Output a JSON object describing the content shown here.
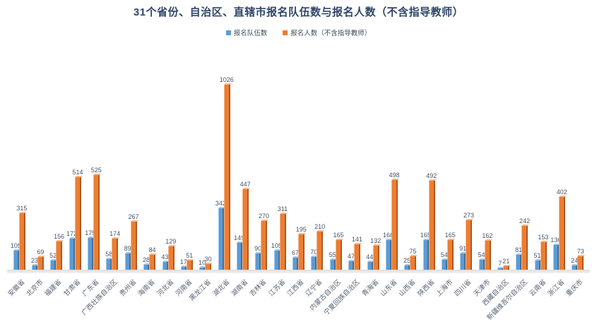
{
  "title": "31个省份、自治区、直辖市报名队伍数与报名人数（不含指导教师）",
  "colors": {
    "title_text": "#2f4668",
    "data_label_text": "#44546a",
    "axis_label_text": "#596473",
    "floor": "#dcdcdc",
    "background": "#ffffff"
  },
  "chart_data": {
    "type": "bar",
    "title": "31个省份、自治区、直辖市报名队伍数与报名人数（不含指导教师）",
    "xlabel": "",
    "ylabel": "",
    "ylim": [
      0,
      1100
    ],
    "grid": false,
    "legend_position": "top",
    "data_labels": true,
    "categories": [
      "安徽省",
      "北京市",
      "福建省",
      "甘肃省",
      "广东省",
      "广西壮族自治区",
      "贵州省",
      "海南省",
      "河北省",
      "河南省",
      "黑龙江省",
      "湖北省",
      "湖南省",
      "吉林省",
      "江苏省",
      "江西省",
      "辽宁省",
      "内蒙古自治区",
      "宁夏回族自治区",
      "青海省",
      "山东省",
      "山西省",
      "陕西省",
      "上海市",
      "四川省",
      "天津市",
      "西藏自治区",
      "新疆维吾尔自治区",
      "云南省",
      "浙江省",
      "重庆市"
    ],
    "series": [
      {
        "name": "报名队伍数",
        "color": "#5b9bd5",
        "color_dark": "#41719c",
        "color_light": "#9dc3e6",
        "values": [
          105,
          23,
          52,
          172,
          175,
          58,
          89,
          28,
          43,
          17,
          10,
          342,
          149,
          90,
          105,
          67,
          70,
          55,
          47,
          44,
          166,
          25,
          165,
          54,
          91,
          54,
          7,
          81,
          51,
          136,
          24
        ]
      },
      {
        "name": "报名人数（不含指导教师）",
        "color": "#ed7d31",
        "color_dark": "#ae5a21",
        "color_light": "#f4b183",
        "values": [
          315,
          69,
          156,
          514,
          525,
          174,
          267,
          84,
          129,
          51,
          30,
          1026,
          447,
          270,
          311,
          195,
          210,
          165,
          141,
          132,
          498,
          75,
          492,
          165,
          273,
          162,
          21,
          242,
          153,
          402,
          73
        ]
      }
    ]
  }
}
